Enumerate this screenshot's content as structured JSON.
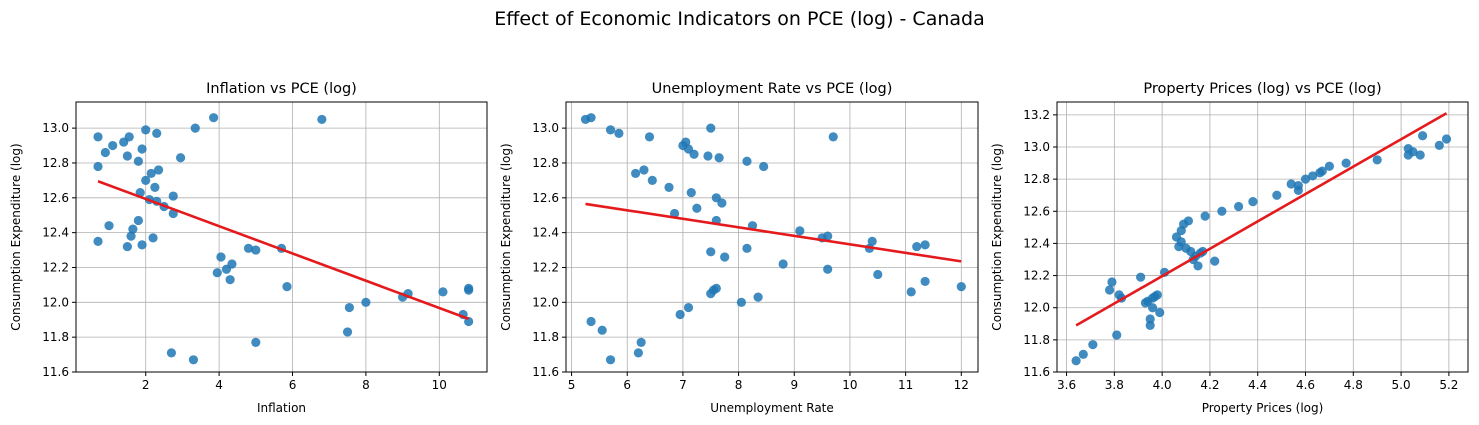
{
  "suptitle": "Effect of Economic Indicators on PCE (log) - Canada",
  "chart_data": [
    {
      "type": "scatter",
      "title": "Inflation vs PCE (log)",
      "xlabel": "Inflation",
      "ylabel": "Consumption Expenditure (log)",
      "xlim": [
        0.1,
        11.3
      ],
      "ylim": [
        11.6,
        13.15
      ],
      "xticks": [
        2,
        4,
        6,
        8,
        10
      ],
      "yticks": [
        11.6,
        11.8,
        12.0,
        12.2,
        12.4,
        12.6,
        12.8,
        13.0
      ],
      "grid": true,
      "point_color": "#1f77b4",
      "line_color": "#e41a1c",
      "points": [
        [
          0.7,
          12.95
        ],
        [
          0.7,
          12.78
        ],
        [
          0.7,
          12.35
        ],
        [
          0.9,
          12.86
        ],
        [
          1.0,
          12.44
        ],
        [
          1.1,
          12.9
        ],
        [
          1.4,
          12.92
        ],
        [
          1.5,
          12.84
        ],
        [
          1.5,
          12.32
        ],
        [
          1.55,
          12.95
        ],
        [
          1.6,
          12.38
        ],
        [
          1.65,
          12.42
        ],
        [
          1.8,
          12.81
        ],
        [
          1.8,
          12.47
        ],
        [
          1.85,
          12.63
        ],
        [
          1.9,
          12.33
        ],
        [
          1.9,
          12.88
        ],
        [
          2.0,
          12.99
        ],
        [
          2.0,
          12.7
        ],
        [
          2.1,
          12.59
        ],
        [
          2.15,
          12.74
        ],
        [
          2.2,
          12.37
        ],
        [
          2.25,
          12.66
        ],
        [
          2.3,
          12.58
        ],
        [
          2.3,
          12.97
        ],
        [
          2.35,
          12.76
        ],
        [
          2.5,
          12.55
        ],
        [
          2.7,
          11.71
        ],
        [
          2.75,
          12.51
        ],
        [
          2.75,
          12.61
        ],
        [
          2.95,
          12.83
        ],
        [
          3.3,
          11.67
        ],
        [
          3.35,
          13.0
        ],
        [
          3.85,
          13.06
        ],
        [
          3.95,
          12.17
        ],
        [
          4.05,
          12.26
        ],
        [
          4.2,
          12.19
        ],
        [
          4.3,
          12.13
        ],
        [
          4.35,
          12.22
        ],
        [
          4.8,
          12.31
        ],
        [
          5.0,
          12.3
        ],
        [
          5.0,
          11.77
        ],
        [
          5.7,
          12.31
        ],
        [
          5.85,
          12.09
        ],
        [
          6.8,
          13.05
        ],
        [
          7.5,
          11.83
        ],
        [
          7.55,
          11.97
        ],
        [
          8.0,
          12.0
        ],
        [
          9.0,
          12.03
        ],
        [
          9.15,
          12.05
        ],
        [
          10.1,
          12.06
        ],
        [
          10.65,
          11.93
        ],
        [
          10.8,
          12.07
        ],
        [
          10.8,
          12.08
        ],
        [
          10.8,
          11.89
        ]
      ],
      "fit_line": [
        [
          0.7,
          12.695
        ],
        [
          10.8,
          11.905
        ]
      ]
    },
    {
      "type": "scatter",
      "title": "Unemployment Rate vs PCE (log)",
      "xlabel": "Unemployment Rate",
      "ylabel": "Consumption Expenditure (log)",
      "xlim": [
        4.9,
        12.3
      ],
      "ylim": [
        11.6,
        13.15
      ],
      "xticks": [
        5,
        6,
        7,
        8,
        9,
        10,
        11,
        12
      ],
      "yticks": [
        11.6,
        11.8,
        12.0,
        12.2,
        12.4,
        12.6,
        12.8,
        13.0
      ],
      "grid": true,
      "point_color": "#1f77b4",
      "line_color": "#e41a1c",
      "points": [
        [
          5.25,
          13.05
        ],
        [
          5.35,
          13.06
        ],
        [
          5.35,
          11.89
        ],
        [
          5.55,
          11.84
        ],
        [
          5.7,
          12.99
        ],
        [
          5.7,
          11.67
        ],
        [
          5.85,
          12.97
        ],
        [
          6.15,
          12.74
        ],
        [
          6.2,
          11.71
        ],
        [
          6.25,
          11.77
        ],
        [
          6.3,
          12.76
        ],
        [
          6.4,
          12.95
        ],
        [
          6.45,
          12.7
        ],
        [
          6.75,
          12.66
        ],
        [
          6.85,
          12.51
        ],
        [
          6.95,
          11.93
        ],
        [
          7.0,
          12.9
        ],
        [
          7.05,
          12.92
        ],
        [
          7.1,
          12.88
        ],
        [
          7.1,
          11.97
        ],
        [
          7.15,
          12.63
        ],
        [
          7.2,
          12.85
        ],
        [
          7.25,
          12.54
        ],
        [
          7.45,
          12.84
        ],
        [
          7.5,
          13.0
        ],
        [
          7.5,
          12.29
        ],
        [
          7.5,
          12.05
        ],
        [
          7.55,
          12.07
        ],
        [
          7.6,
          12.6
        ],
        [
          7.6,
          12.47
        ],
        [
          7.6,
          12.08
        ],
        [
          7.65,
          12.83
        ],
        [
          7.7,
          12.57
        ],
        [
          7.75,
          12.26
        ],
        [
          8.05,
          12.0
        ],
        [
          8.15,
          12.81
        ],
        [
          8.15,
          12.31
        ],
        [
          8.25,
          12.44
        ],
        [
          8.35,
          12.03
        ],
        [
          8.45,
          12.78
        ],
        [
          8.8,
          12.22
        ],
        [
          9.1,
          12.41
        ],
        [
          9.5,
          12.37
        ],
        [
          9.6,
          12.19
        ],
        [
          9.6,
          12.38
        ],
        [
          9.7,
          12.95
        ],
        [
          10.35,
          12.31
        ],
        [
          10.4,
          12.35
        ],
        [
          10.5,
          12.16
        ],
        [
          11.1,
          12.06
        ],
        [
          11.2,
          12.32
        ],
        [
          11.35,
          12.33
        ],
        [
          11.35,
          12.12
        ],
        [
          12.0,
          12.09
        ]
      ],
      "fit_line": [
        [
          5.25,
          12.565
        ],
        [
          12.0,
          12.235
        ]
      ]
    },
    {
      "type": "scatter",
      "title": "Property Prices (log) vs PCE (log)",
      "xlabel": "Property Prices (log)",
      "ylabel": "Consumption Expenditure (log)",
      "xlim": [
        3.56,
        5.28
      ],
      "ylim": [
        11.6,
        13.28
      ],
      "xticks": [
        3.6,
        3.8,
        4.0,
        4.2,
        4.4,
        4.6,
        4.8,
        5.0,
        5.2
      ],
      "yticks": [
        11.6,
        11.8,
        12.0,
        12.2,
        12.4,
        12.6,
        12.8,
        13.0,
        13.2
      ],
      "grid": true,
      "point_color": "#1f77b4",
      "line_color": "#e41a1c",
      "points": [
        [
          3.64,
          11.67
        ],
        [
          3.67,
          11.71
        ],
        [
          3.71,
          11.77
        ],
        [
          3.78,
          12.11
        ],
        [
          3.79,
          12.16
        ],
        [
          3.81,
          11.83
        ],
        [
          3.82,
          12.08
        ],
        [
          3.83,
          12.06
        ],
        [
          3.91,
          12.19
        ],
        [
          3.93,
          12.03
        ],
        [
          3.94,
          12.04
        ],
        [
          3.95,
          11.89
        ],
        [
          3.95,
          11.93
        ],
        [
          3.96,
          12.06
        ],
        [
          3.96,
          12.0
        ],
        [
          3.97,
          12.07
        ],
        [
          3.98,
          12.08
        ],
        [
          3.99,
          11.97
        ],
        [
          4.01,
          12.22
        ],
        [
          4.06,
          12.44
        ],
        [
          4.07,
          12.38
        ],
        [
          4.08,
          12.41
        ],
        [
          4.08,
          12.48
        ],
        [
          4.09,
          12.52
        ],
        [
          4.1,
          12.37
        ],
        [
          4.11,
          12.54
        ],
        [
          4.12,
          12.35
        ],
        [
          4.13,
          12.3
        ],
        [
          4.14,
          12.32
        ],
        [
          4.15,
          12.26
        ],
        [
          4.16,
          12.34
        ],
        [
          4.17,
          12.35
        ],
        [
          4.18,
          12.57
        ],
        [
          4.22,
          12.29
        ],
        [
          4.25,
          12.6
        ],
        [
          4.32,
          12.63
        ],
        [
          4.38,
          12.66
        ],
        [
          4.48,
          12.7
        ],
        [
          4.54,
          12.77
        ],
        [
          4.57,
          12.73
        ],
        [
          4.57,
          12.76
        ],
        [
          4.6,
          12.8
        ],
        [
          4.63,
          12.82
        ],
        [
          4.66,
          12.84
        ],
        [
          4.67,
          12.85
        ],
        [
          4.7,
          12.88
        ],
        [
          4.77,
          12.9
        ],
        [
          4.9,
          12.92
        ],
        [
          5.03,
          12.95
        ],
        [
          5.03,
          12.99
        ],
        [
          5.05,
          12.97
        ],
        [
          5.08,
          12.95
        ],
        [
          5.09,
          13.07
        ],
        [
          5.16,
          13.01
        ],
        [
          5.19,
          13.05
        ]
      ],
      "fit_line": [
        [
          3.64,
          11.89
        ],
        [
          5.19,
          13.21
        ]
      ]
    }
  ]
}
